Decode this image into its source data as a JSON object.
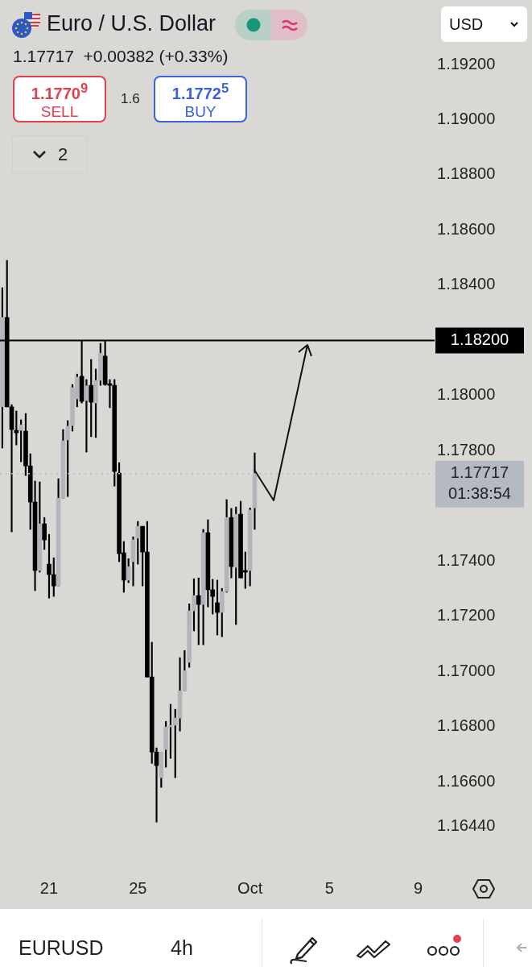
{
  "chart_data": {
    "type": "candlestick",
    "title": "Euro / U.S. Dollar",
    "subtitle": "1.17717  +0.00382 (+0.33%)",
    "categories": [
      null,
      null,
      null,
      null,
      null,
      null,
      null,
      null,
      null,
      null,
      "21",
      null,
      null,
      null,
      null,
      null,
      null,
      null,
      null,
      null,
      null,
      null,
      null,
      null,
      null,
      null,
      null,
      null,
      null,
      "25",
      null,
      null,
      null,
      null,
      null,
      null,
      null,
      null,
      null,
      null,
      null,
      null,
      null,
      null,
      null,
      null,
      null,
      null,
      null,
      null,
      null,
      null,
      null,
      "Oct",
      null,
      null,
      null,
      null,
      null,
      null,
      null,
      null,
      null,
      null,
      null,
      null,
      null,
      null,
      null,
      null,
      "5",
      null,
      null,
      null,
      null,
      null,
      null,
      null,
      null,
      null,
      null,
      null,
      null,
      null,
      null,
      null,
      null,
      null,
      null,
      "9",
      null,
      null,
      null
    ],
    "ohlc": [
      [
        1.17959,
        1.18391,
        1.1781,
        1.18283
      ],
      [
        1.18283,
        1.1849,
        1.17959,
        1.17959
      ],
      [
        1.17959,
        1.17967,
        1.17506,
        1.17877
      ],
      [
        1.17874,
        1.17944,
        1.17821,
        1.17865
      ],
      [
        1.17874,
        1.17912,
        1.1776,
        1.17894
      ],
      [
        1.17871,
        1.17935,
        1.1771,
        1.17745
      ],
      [
        1.17745,
        1.17789,
        1.17515,
        1.17614
      ],
      [
        1.17614,
        1.1769,
        1.17293,
        1.17366
      ],
      [
        1.17366,
        1.17687,
        1.1736,
        1.17535
      ],
      [
        1.17535,
        1.17558,
        1.17442,
        1.17477
      ],
      [
        1.17389,
        1.17497,
        1.17266,
        1.17351
      ],
      [
        1.17351,
        1.17412,
        1.17272,
        1.1731
      ],
      [
        1.1731,
        1.17699,
        1.1731,
        1.17628
      ],
      [
        1.17628,
        1.17877,
        1.17628,
        1.17836
      ],
      [
        1.17839,
        1.17909,
        1.17634,
        1.17889
      ],
      [
        1.17891,
        1.1804,
        1.17871,
        1.18029
      ],
      [
        1.17988,
        1.18078,
        1.17959,
        1.18067
      ],
      [
        1.1807,
        1.182,
        1.17973,
        1.17979
      ],
      [
        1.17982,
        1.18058,
        1.17795,
        1.18035
      ],
      [
        1.18037,
        1.18131,
        1.17851,
        1.17976
      ],
      [
        1.17973,
        1.18096,
        1.17848,
        1.18055
      ],
      [
        1.18055,
        1.18189,
        1.18037,
        1.18154
      ],
      [
        1.18143,
        1.18198,
        1.18037,
        1.1804
      ],
      [
        1.18043,
        1.18058,
        1.17956,
        1.18037
      ],
      [
        1.18037,
        1.18058,
        1.17672,
        1.17725
      ],
      [
        1.17719,
        1.17757,
        1.17398,
        1.17427
      ],
      [
        1.1743,
        1.17471,
        1.17287,
        1.17331
      ],
      [
        1.17331,
        1.17409,
        1.17322,
        1.1738
      ],
      [
        1.17398,
        1.17488,
        1.1731,
        1.17477
      ],
      [
        1.17483,
        1.17544,
        1.17389,
        1.17526
      ],
      [
        1.17526,
        1.17526,
        1.1731,
        1.17433
      ],
      [
        1.17433,
        1.17544,
        1.1698,
        1.1698
      ],
      [
        1.1698,
        1.17106,
        1.16667,
        1.16708
      ],
      [
        1.16708,
        1.16723,
        1.16454,
        1.16659
      ],
      [
        1.16615,
        1.16708,
        1.1658,
        1.16708
      ],
      [
        1.16717,
        1.16819,
        1.16653,
        1.16799
      ],
      [
        1.16799,
        1.16881,
        1.16685,
        1.16805
      ],
      [
        1.16805,
        1.16863,
        1.16615,
        1.16831
      ],
      [
        1.16831,
        1.1705,
        1.16784,
        1.1693
      ],
      [
        1.1693,
        1.17076,
        1.1693,
        1.17003
      ],
      [
        1.17033,
        1.17245,
        1.17015,
        1.1722
      ],
      [
        1.1722,
        1.17336,
        1.17147,
        1.17275
      ],
      [
        1.17275,
        1.17339,
        1.17097,
        1.17243
      ],
      [
        1.17243,
        1.17515,
        1.17097,
        1.17503
      ],
      [
        1.17503,
        1.1755,
        1.17234,
        1.17296
      ],
      [
        1.17296,
        1.17334,
        1.17208,
        1.17272
      ],
      [
        1.17249,
        1.17331,
        1.17132,
        1.17214
      ],
      [
        1.17214,
        1.17301,
        1.17126,
        1.1729
      ],
      [
        1.1729,
        1.17623,
        1.17287,
        1.17558
      ],
      [
        1.17558,
        1.17591,
        1.17339,
        1.1738
      ],
      [
        1.17377,
        1.17596,
        1.1717,
        1.1757
      ],
      [
        1.1757,
        1.17617,
        1.17339,
        1.17339
      ],
      [
        1.17366,
        1.17433,
        1.17301,
        1.1736
      ],
      [
        1.17366,
        1.17593,
        1.1731,
        1.17585
      ],
      [
        1.17593,
        1.17792,
        1.17515,
        1.17717
      ],
      null,
      null,
      null,
      null,
      null,
      null,
      null,
      null,
      null,
      null,
      null,
      null,
      null,
      null,
      null,
      null,
      null,
      null,
      null,
      null,
      null,
      null,
      null,
      null,
      null,
      null,
      null,
      null,
      null,
      null,
      null,
      null,
      null,
      null,
      null,
      null,
      null,
      null
    ],
    "color": "#000000",
    "colors": [
      "#b4b5ba",
      "#000000",
      "#000000",
      "#000000",
      "#b4b5ba",
      "#000000",
      "#000000",
      "#000000",
      "#b4b5ba",
      "#000000",
      "#000000",
      "#000000",
      "#b4b5ba",
      "#b4b5ba",
      "#b4b5ba",
      "#b4b5ba",
      "#b4b5ba",
      "#000000",
      "#b4b5ba",
      "#000000",
      "#b4b5ba",
      "#b4b5ba",
      "#000000",
      "#000000",
      "#000000",
      "#000000",
      "#000000",
      "#b4b5ba",
      "#b4b5ba",
      "#b4b5ba",
      "#000000",
      "#000000",
      "#000000",
      "#000000",
      "#b4b5ba",
      "#b4b5ba",
      "#b4b5ba",
      "#b4b5ba",
      "#b4b5ba",
      "#b4b5ba",
      "#b4b5ba",
      "#b4b5ba",
      "#000000",
      "#b4b5ba",
      "#000000",
      "#000000",
      "#000000",
      "#b4b5ba",
      "#b4b5ba",
      "#000000",
      "#b4b5ba",
      "#000000",
      "#000000",
      "#b4b5ba",
      "#b4b5ba",
      null,
      null,
      null,
      null,
      null,
      null,
      null,
      null,
      null,
      null,
      null,
      null,
      null,
      null,
      null,
      null,
      null,
      null,
      null,
      null,
      null,
      null,
      null,
      null,
      null,
      null,
      null,
      null,
      null,
      null,
      null,
      null,
      null,
      null,
      null,
      null,
      null,
      null
    ],
    "ylim": [
      1.1644,
      1.192
    ],
    "yticks": [
      {
        "value": 1.1644,
        "label": "1.16440"
      },
      {
        "value": 1.166,
        "label": "1.16600"
      },
      {
        "value": 1.168,
        "label": "1.16800"
      },
      {
        "value": 1.17,
        "label": "1.17000"
      },
      {
        "value": 1.172,
        "label": "1.17200"
      },
      {
        "value": 1.174,
        "label": "1.17400"
      },
      {
        "value": 1.178,
        "label": "1.17800"
      },
      {
        "value": 1.18,
        "label": "1.18000"
      },
      {
        "value": 1.184,
        "label": "1.18400"
      },
      {
        "value": 1.186,
        "label": "1.18600"
      },
      {
        "value": 1.188,
        "label": "1.18800"
      },
      {
        "value": 1.19,
        "label": "1.19000"
      },
      {
        "value": 1.192,
        "label": "1.19200"
      }
    ],
    "ref_lines": [
      {
        "axis": "y",
        "value": 1.182,
        "label": "1.18200",
        "color": "#000000",
        "line_style": "solid"
      },
      {
        "axis": "y",
        "value": 1.17717,
        "label": "1.17717\n01:38:54",
        "color": "#b5b9c4",
        "line_style": "dotted"
      }
    ],
    "grid": false,
    "legend": false,
    "annotations": [
      "1.1770$^{9}$",
      "SELL",
      "1.6",
      "1.1772$^{5}$",
      "BUY",
      "2",
      "USD",
      "EURUSD",
      "4h"
    ]
  }
}
